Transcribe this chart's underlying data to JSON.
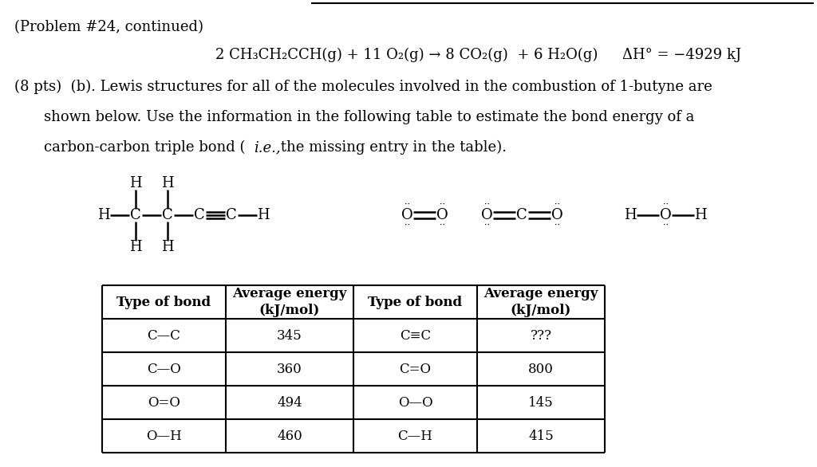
{
  "title_line": "(Problem #24, continued)",
  "equation_left": "2 CH₃CH₂CCH(g) + 11 O₂(g) → 8 CO₂(g)  + 6 H₂O(g)",
  "delta_h": "ΔH° = −4929 kJ",
  "para1": "(8 pts)  (b). Lewis structures for all of the molecules involved in the combustion of 1-butyne are",
  "para2": "shown below. Use the information in the following table to estimate the bond energy of a",
  "para3a": "carbon-carbon triple bond (",
  "para3b": "i.e.,",
  "para3c": " the missing entry in the table).",
  "table_col1": [
    "C—C",
    "C—O",
    "O=O",
    "O—H"
  ],
  "table_col2": [
    "345",
    "360",
    "494",
    "460"
  ],
  "table_col3": [
    "C≡C",
    "C=O",
    "O—O",
    "C—H"
  ],
  "table_col4": [
    "???",
    "800",
    "145",
    "415"
  ],
  "bg_color": "#ffffff",
  "text_color": "#000000"
}
